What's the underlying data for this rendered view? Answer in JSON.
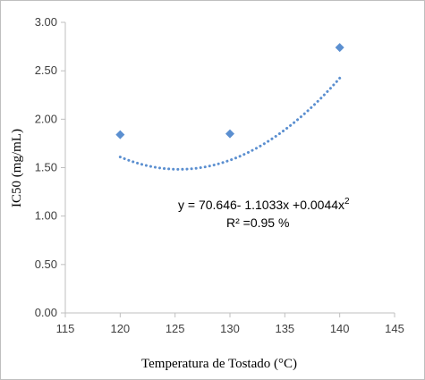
{
  "chart_data": {
    "type": "scatter",
    "title": "",
    "xlabel": "Temperatura de Tostado (°C)",
    "ylabel": "IC50 (mg/mL)",
    "xlim": [
      115,
      145
    ],
    "ylim": [
      0,
      3
    ],
    "x_ticks": [
      "115",
      "120",
      "125",
      "130",
      "135",
      "140",
      "145"
    ],
    "y_ticks": [
      "0.00",
      "0.50",
      "1.00",
      "1.50",
      "2.00",
      "2.50",
      "3.00"
    ],
    "grid": false,
    "legend": "none",
    "series": [
      {
        "x": [
          120,
          130,
          140
        ],
        "y": [
          1.84,
          1.85,
          2.74
        ],
        "marker": "diamond",
        "color": "#5b8fd0"
      }
    ],
    "trendline": {
      "type": "polynomial-2",
      "coefficients": {
        "c": 70.646,
        "b": -1.1033,
        "a": 0.0044
      },
      "style": "dotted",
      "color": "#5b8fd0"
    },
    "annotation": {
      "equation": "y = 70.646- 1.1033x +0.0044x",
      "exponent": "2",
      "r_squared": "R² =0.95 %"
    }
  }
}
